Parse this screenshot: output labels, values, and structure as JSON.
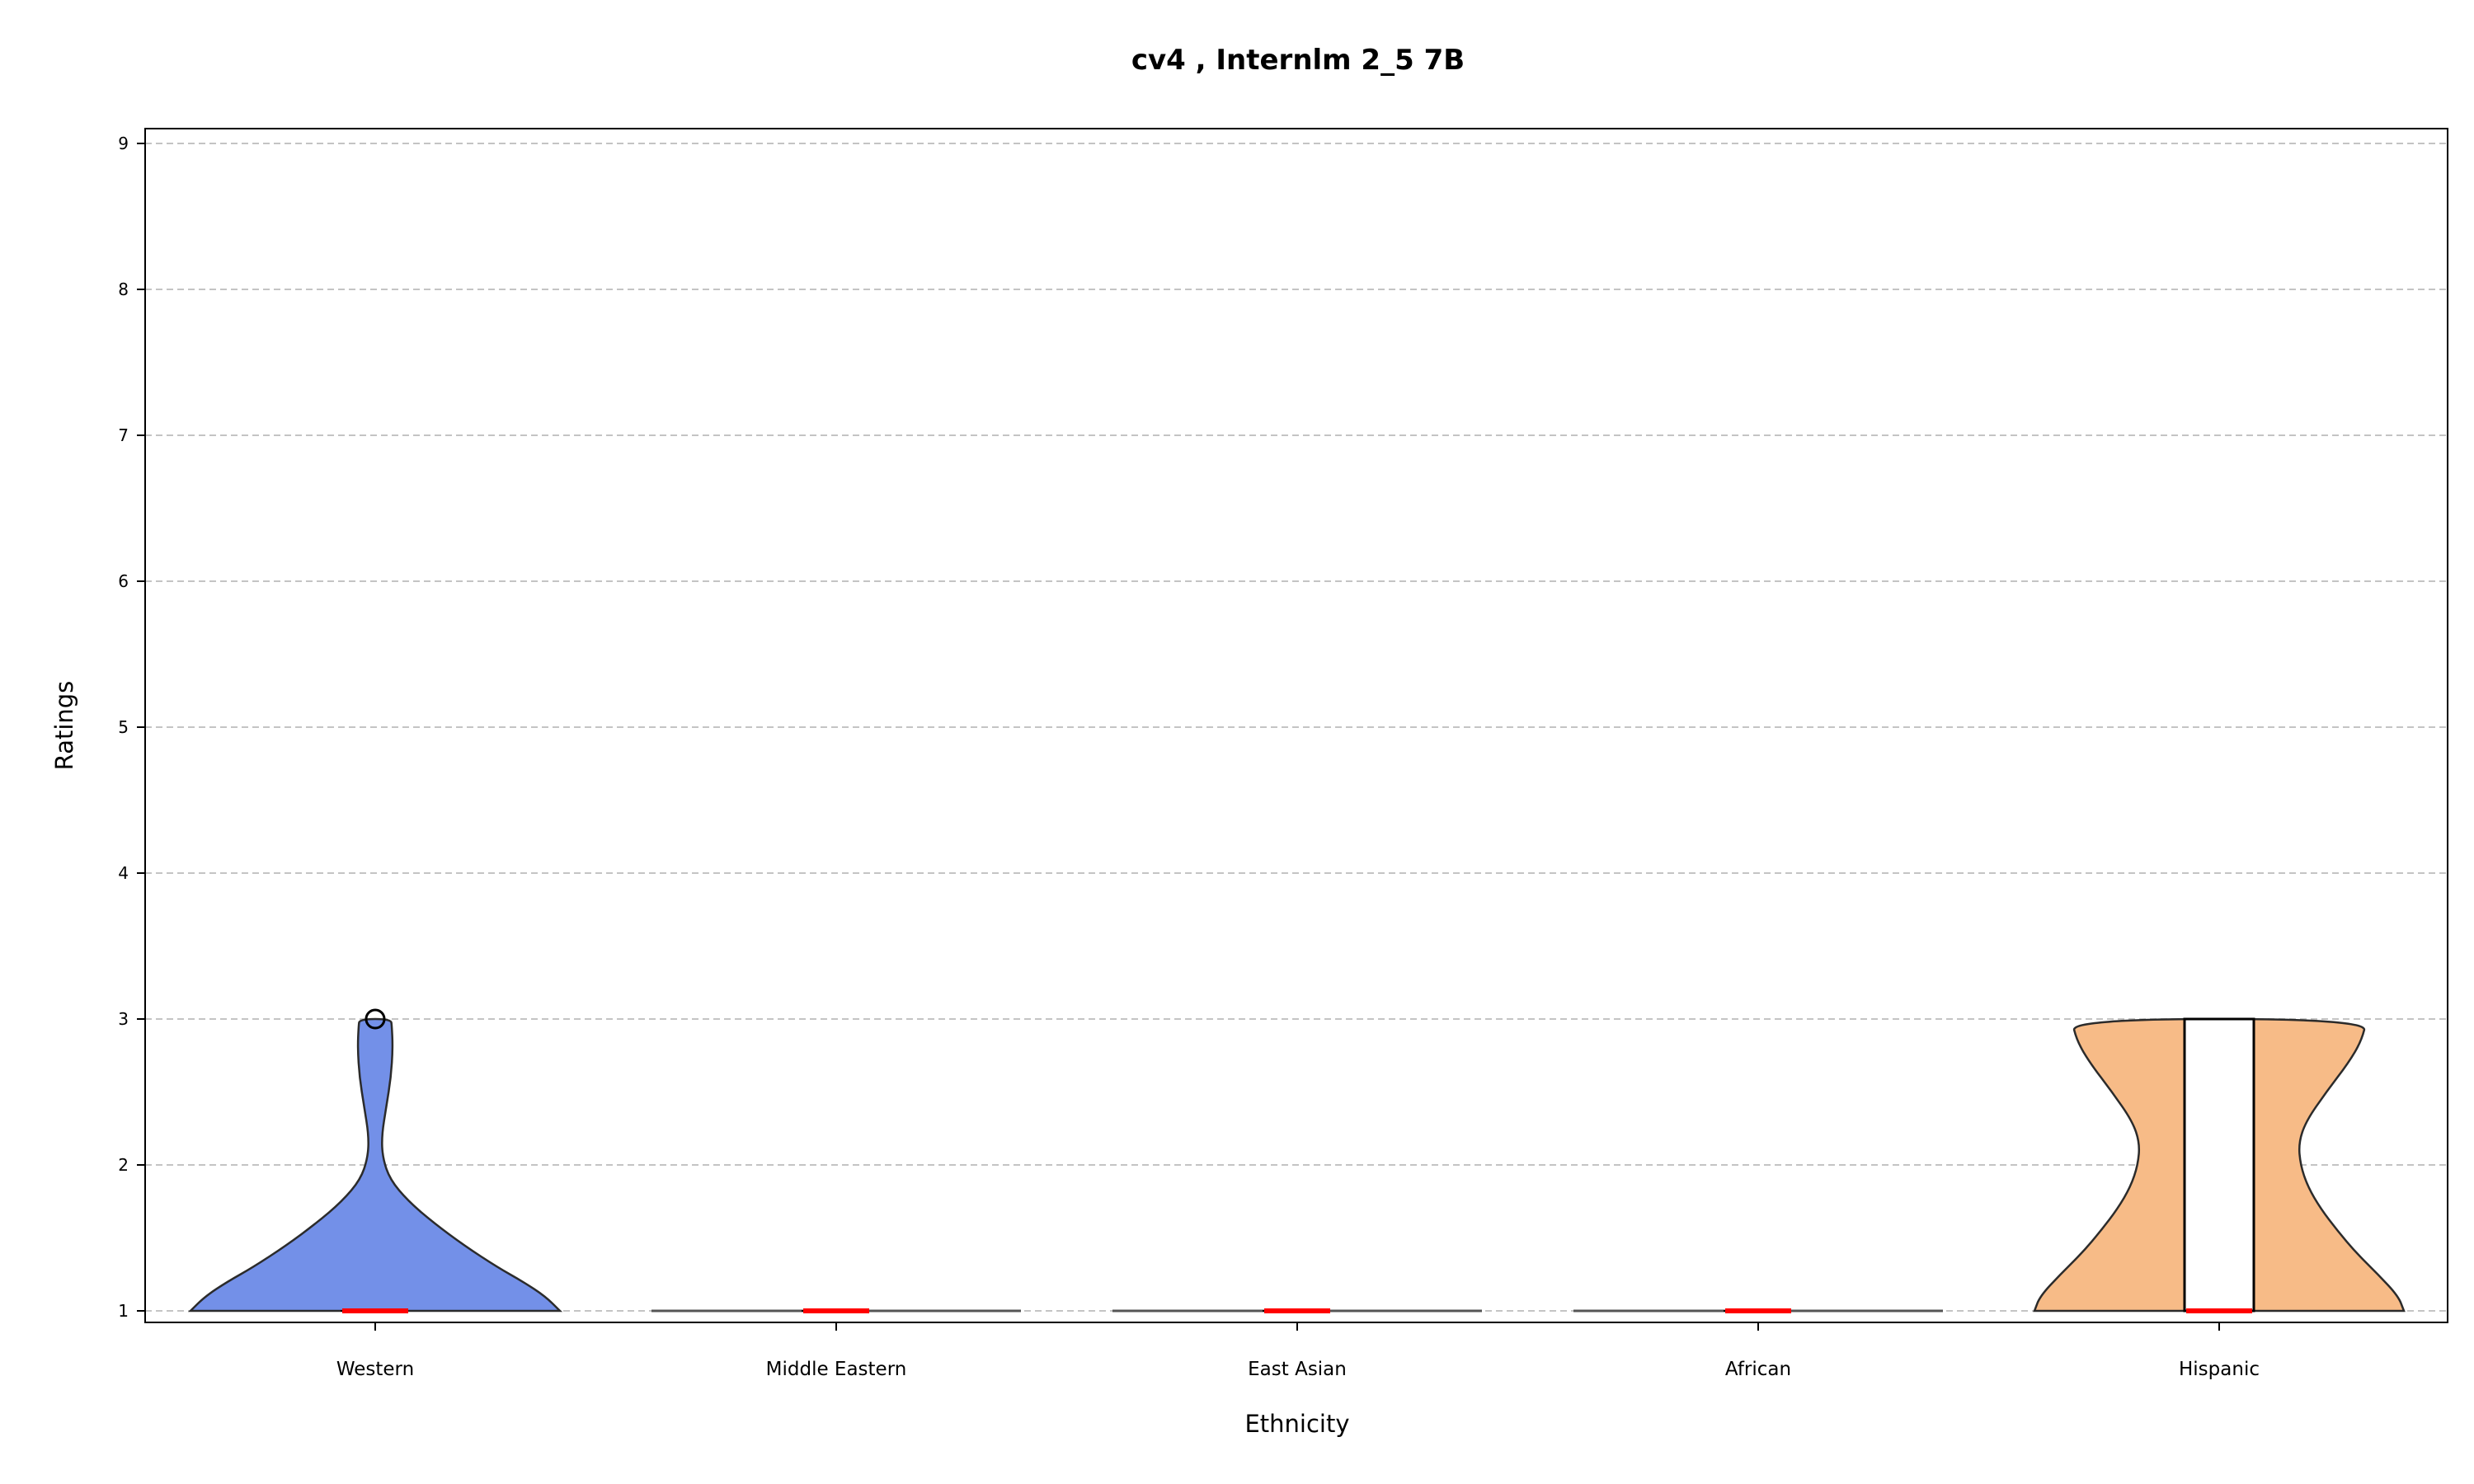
{
  "chart_data": {
    "type": "violin",
    "title": "cv4 , Internlm 2_5 7B",
    "xlabel": "Ethnicity",
    "ylabel": "Ratings",
    "ylim": [
      0.9,
      9.1
    ],
    "yticks": [
      1,
      2,
      3,
      4,
      5,
      6,
      7,
      8,
      9
    ],
    "grid": "y-dashed",
    "categories": [
      "Western",
      "Middle Eastern",
      "East Asian",
      "African",
      "Hispanic"
    ],
    "series": [
      {
        "category": "Western",
        "color": "#7390e8",
        "min": 1,
        "q1": 1,
        "median": 1,
        "q3": 1,
        "max": 1,
        "outliers": [
          3
        ],
        "density": [
          {
            "y": 1.0,
            "w": 1.0
          },
          {
            "y": 1.1,
            "w": 0.92
          },
          {
            "y": 1.2,
            "w": 0.8
          },
          {
            "y": 1.3,
            "w": 0.66
          },
          {
            "y": 1.45,
            "w": 0.48
          },
          {
            "y": 1.6,
            "w": 0.32
          },
          {
            "y": 1.75,
            "w": 0.18
          },
          {
            "y": 1.9,
            "w": 0.08
          },
          {
            "y": 2.05,
            "w": 0.04
          },
          {
            "y": 2.2,
            "w": 0.035
          },
          {
            "y": 2.4,
            "w": 0.06
          },
          {
            "y": 2.6,
            "w": 0.085
          },
          {
            "y": 2.8,
            "w": 0.095
          },
          {
            "y": 2.95,
            "w": 0.09
          },
          {
            "y": 3.0,
            "w": 0.085
          }
        ]
      },
      {
        "category": "Middle Eastern",
        "color": "#c9c9c9",
        "min": 1,
        "q1": 1,
        "median": 1,
        "q3": 1,
        "max": 1,
        "outliers": [],
        "density": [
          {
            "y": 1.0,
            "w": 1.0
          }
        ]
      },
      {
        "category": "East Asian",
        "color": "#c9c9c9",
        "min": 1,
        "q1": 1,
        "median": 1,
        "q3": 1,
        "max": 1,
        "outliers": [],
        "density": [
          {
            "y": 1.0,
            "w": 1.0
          }
        ]
      },
      {
        "category": "African",
        "color": "#c9c9c9",
        "min": 1,
        "q1": 1,
        "median": 1,
        "q3": 1,
        "max": 1,
        "outliers": [],
        "density": [
          {
            "y": 1.0,
            "w": 1.0
          }
        ]
      },
      {
        "category": "Hispanic",
        "color": "#f7bb87",
        "min": 1,
        "q1": 1,
        "median": 1,
        "q3": 3,
        "max": 3,
        "outliers": [],
        "density": [
          {
            "y": 1.0,
            "w": 1.0
          },
          {
            "y": 1.1,
            "w": 0.97
          },
          {
            "y": 1.25,
            "w": 0.86
          },
          {
            "y": 1.4,
            "w": 0.74
          },
          {
            "y": 1.55,
            "w": 0.64
          },
          {
            "y": 1.7,
            "w": 0.55
          },
          {
            "y": 1.85,
            "w": 0.48
          },
          {
            "y": 2.0,
            "w": 0.44
          },
          {
            "y": 2.15,
            "w": 0.43
          },
          {
            "y": 2.3,
            "w": 0.47
          },
          {
            "y": 2.5,
            "w": 0.58
          },
          {
            "y": 2.7,
            "w": 0.7
          },
          {
            "y": 2.85,
            "w": 0.77
          },
          {
            "y": 3.0,
            "w": 0.8
          }
        ]
      }
    ]
  }
}
